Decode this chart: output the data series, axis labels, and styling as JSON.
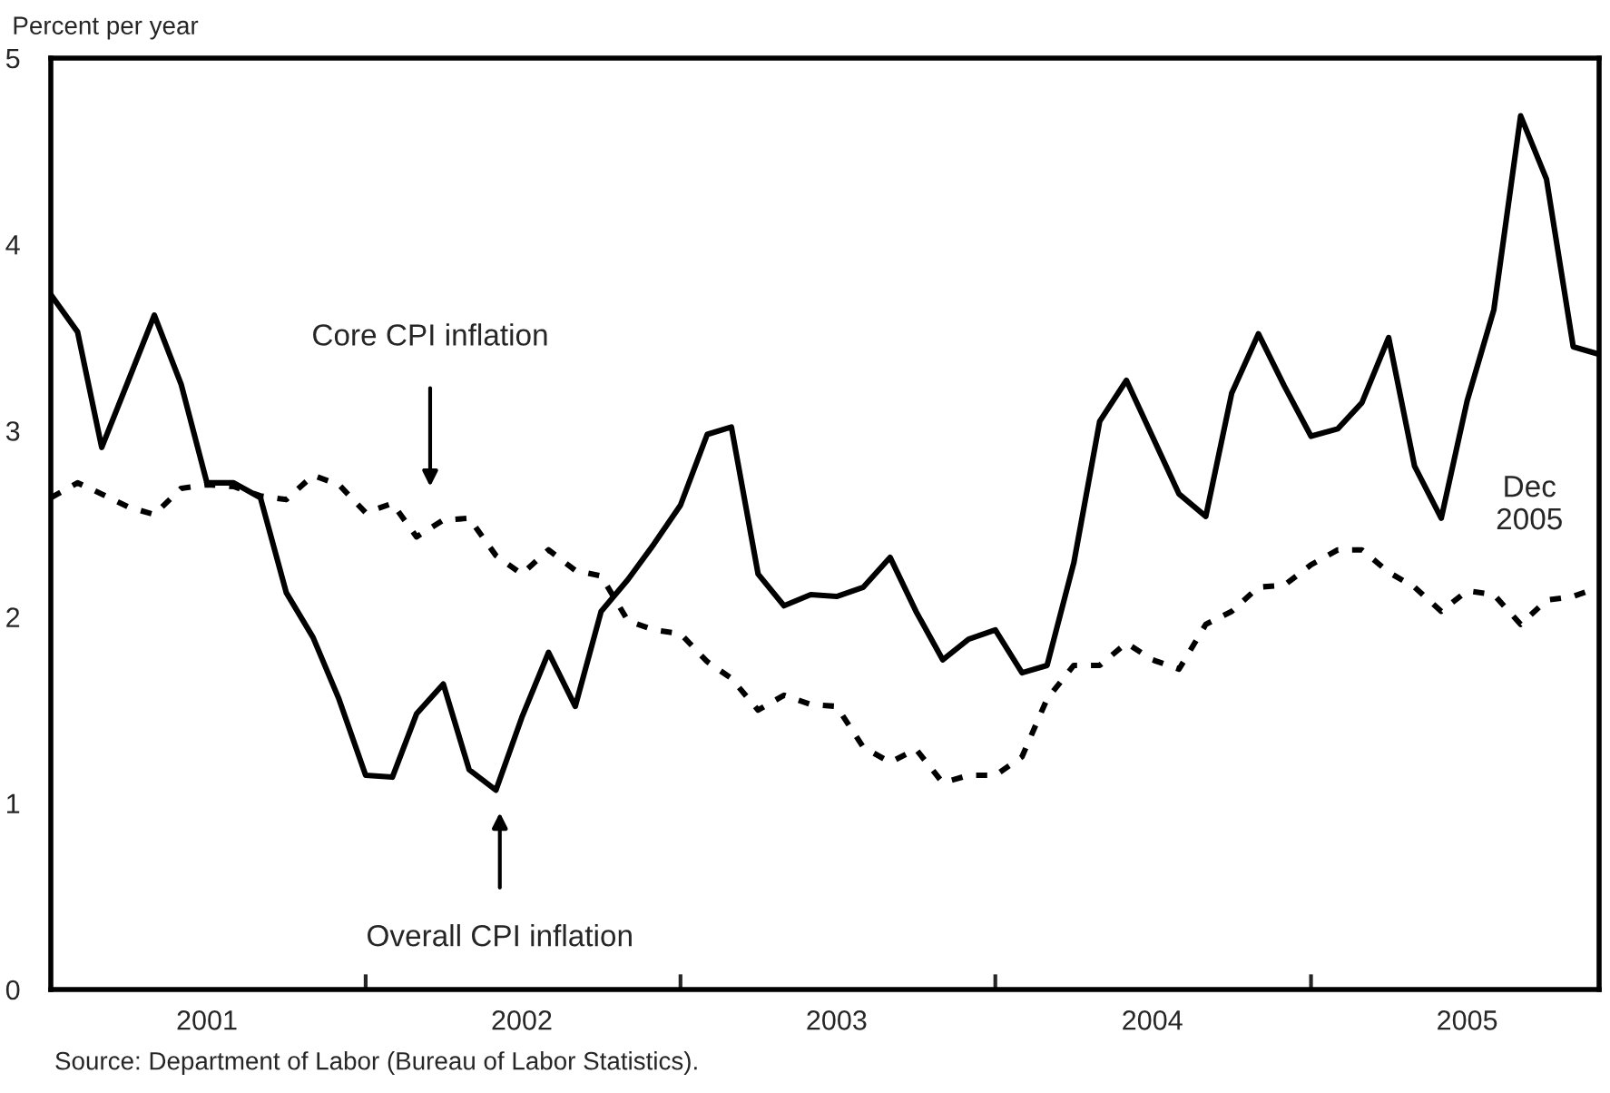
{
  "chart_data": {
    "type": "line",
    "ylabel": "Percent per year",
    "x": [
      "2001-01",
      "2001-02",
      "2001-03",
      "2001-04",
      "2001-05",
      "2001-06",
      "2001-07",
      "2001-08",
      "2001-09",
      "2001-10",
      "2001-11",
      "2001-12",
      "2002-01",
      "2002-02",
      "2002-03",
      "2002-04",
      "2002-05",
      "2002-06",
      "2002-07",
      "2002-08",
      "2002-09",
      "2002-10",
      "2002-11",
      "2002-12",
      "2003-01",
      "2003-02",
      "2003-03",
      "2003-04",
      "2003-05",
      "2003-06",
      "2003-07",
      "2003-08",
      "2003-09",
      "2003-10",
      "2003-11",
      "2003-12",
      "2004-01",
      "2004-02",
      "2004-03",
      "2004-04",
      "2004-05",
      "2004-06",
      "2004-07",
      "2004-08",
      "2004-09",
      "2004-10",
      "2004-11",
      "2004-12",
      "2005-01",
      "2005-02",
      "2005-03",
      "2005-04",
      "2005-05",
      "2005-06",
      "2005-07",
      "2005-08",
      "2005-09",
      "2005-10",
      "2005-11",
      "2005-12"
    ],
    "series": [
      {
        "color": "#000000",
        "line_style": "solid",
        "values": [
          3.73,
          3.53,
          2.91,
          3.27,
          3.62,
          3.25,
          2.72,
          2.72,
          2.64,
          2.13,
          1.89,
          1.56,
          1.15,
          1.14,
          1.48,
          1.64,
          1.18,
          1.07,
          1.46,
          1.81,
          1.52,
          2.03,
          2.2,
          2.39,
          2.6,
          2.98,
          3.02,
          2.23,
          2.06,
          2.12,
          2.11,
          2.16,
          2.32,
          2.03,
          1.77,
          1.88,
          1.93,
          1.7,
          1.74,
          2.29,
          3.05,
          3.27,
          2.97,
          2.66,
          2.54,
          3.2,
          3.52,
          3.24,
          2.97,
          3.01,
          3.15,
          3.5,
          2.81,
          2.53,
          3.16,
          3.65,
          4.69,
          4.35,
          3.45,
          3.41
        ]
      },
      {
        "color": "#000000",
        "line_style": "dotted",
        "values": [
          2.64,
          2.72,
          2.66,
          2.59,
          2.55,
          2.69,
          2.71,
          2.7,
          2.65,
          2.63,
          2.76,
          2.71,
          2.56,
          2.61,
          2.43,
          2.52,
          2.53,
          2.33,
          2.23,
          2.36,
          2.25,
          2.22,
          1.98,
          1.93,
          1.91,
          1.76,
          1.67,
          1.5,
          1.58,
          1.53,
          1.52,
          1.3,
          1.22,
          1.29,
          1.11,
          1.15,
          1.15,
          1.25,
          1.56,
          1.74,
          1.74,
          1.86,
          1.77,
          1.72,
          1.96,
          2.03,
          2.16,
          2.17,
          2.28,
          2.36,
          2.36,
          2.24,
          2.16,
          2.03,
          2.14,
          2.12,
          1.96,
          2.09,
          2.11,
          2.16
        ]
      }
    ],
    "xlim": [
      "2001-01",
      "2005-12"
    ],
    "xticks": [
      {
        "value": "2001-07",
        "label": "2001"
      },
      {
        "value": "2002-01",
        "label": null
      },
      {
        "value": "2002-07",
        "label": "2002"
      },
      {
        "value": "2003-01",
        "label": null
      },
      {
        "value": "2003-07",
        "label": "2003"
      },
      {
        "value": "2004-01",
        "label": null
      },
      {
        "value": "2004-07",
        "label": "2004"
      },
      {
        "value": "2005-01",
        "label": null
      },
      {
        "value": "2005-07",
        "label": "2005"
      }
    ],
    "ylim": [
      0,
      5
    ],
    "yticks": [
      0,
      1,
      2,
      3,
      4,
      5
    ],
    "grid": false,
    "legend": false,
    "annotations": [
      "Core CPI inflation",
      "Overall CPI inflation",
      "Dec\n2005",
      "Source: Department of Labor (Bureau of Labor Statistics)."
    ]
  }
}
